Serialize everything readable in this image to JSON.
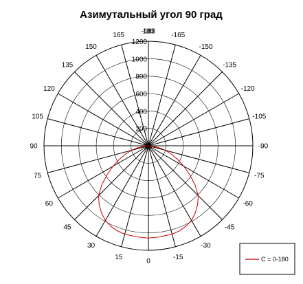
{
  "chart_data": {
    "type": "polar",
    "title": "Азимутальный угол 90 град",
    "angle_ticks": [
      {
        "label": "-180",
        "deg": 180
      },
      {
        "label": "-165",
        "deg": 165
      },
      {
        "label": "-150",
        "deg": 150
      },
      {
        "label": "-135",
        "deg": 135
      },
      {
        "label": "-120",
        "deg": 120
      },
      {
        "label": "-105",
        "deg": 105
      },
      {
        "label": "-90",
        "deg": 90
      },
      {
        "label": "-75",
        "deg": 75
      },
      {
        "label": "-60",
        "deg": 60
      },
      {
        "label": "-45",
        "deg": 45
      },
      {
        "label": "-30",
        "deg": 30
      },
      {
        "label": "-15",
        "deg": 15
      },
      {
        "label": "0",
        "deg": 0
      },
      {
        "label": "15",
        "deg": -15
      },
      {
        "label": "30",
        "deg": -30
      },
      {
        "label": "45",
        "deg": -45
      },
      {
        "label": "60",
        "deg": -60
      },
      {
        "label": "75",
        "deg": -75
      },
      {
        "label": "90",
        "deg": -90
      },
      {
        "label": "105",
        "deg": -105
      },
      {
        "label": "120",
        "deg": -120
      },
      {
        "label": "135",
        "deg": -135
      },
      {
        "label": "150",
        "deg": -150
      },
      {
        "label": "165",
        "deg": -165
      },
      {
        "label": "180",
        "deg": -180
      }
    ],
    "radial_axis": {
      "min": 0,
      "max": 1200,
      "ticks": [
        0,
        200,
        400,
        600,
        800,
        1000,
        1200
      ]
    },
    "grid": true,
    "legend_position": "bottom-right",
    "series": [
      {
        "name": "C = 0-180",
        "color": "#cc0000",
        "angles": [
          -90,
          -85,
          -80,
          -75,
          -70,
          -65,
          -60,
          -55,
          -50,
          -45,
          -40,
          -35,
          -30,
          -25,
          -20,
          -15,
          -10,
          -5,
          0,
          5,
          10,
          15,
          20,
          25,
          30,
          35,
          40,
          45,
          50,
          55,
          60,
          65,
          70,
          75,
          80,
          85,
          90
        ],
        "values": [
          0,
          50,
          120,
          200,
          280,
          370,
          470,
          580,
          700,
          810,
          880,
          940,
          990,
          1020,
          1040,
          1050,
          1050,
          1055,
          1060,
          1055,
          1050,
          1050,
          1040,
          1020,
          990,
          940,
          880,
          810,
          700,
          580,
          470,
          370,
          280,
          200,
          120,
          50,
          0
        ]
      }
    ]
  }
}
